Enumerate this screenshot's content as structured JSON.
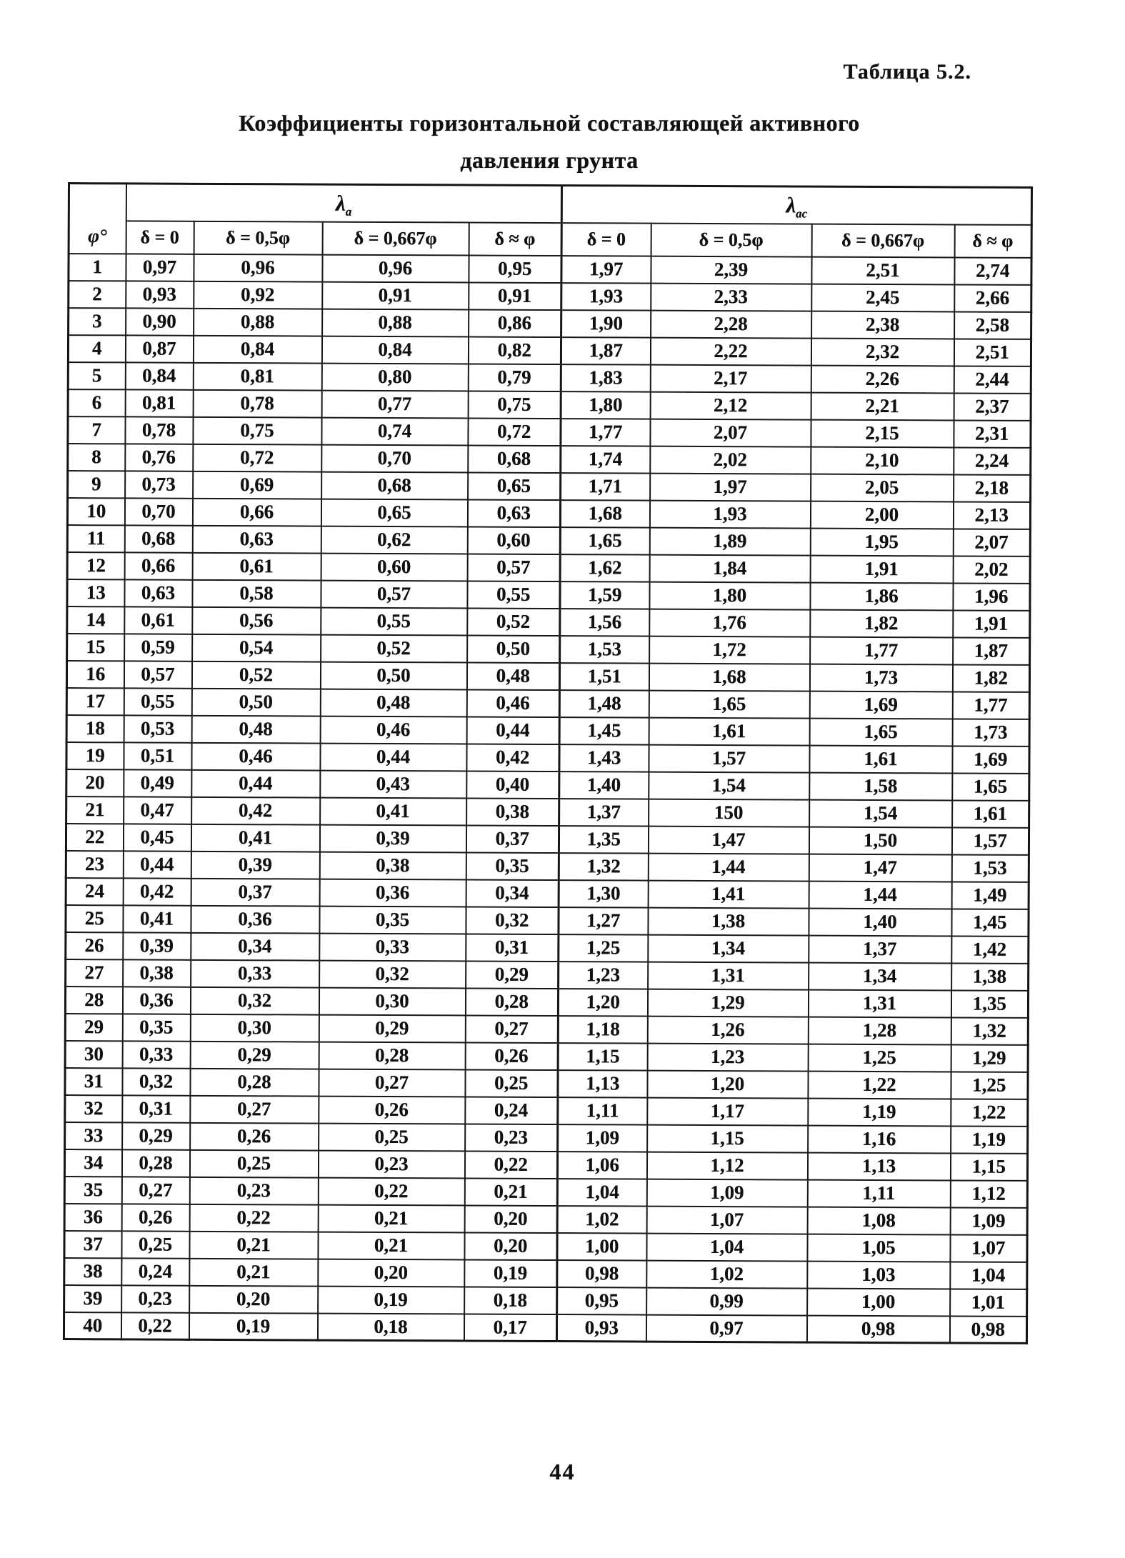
{
  "page": {
    "caption": "Таблица 5.2.",
    "title_line1": "Коэффициенты горизонтальной составляющей активного",
    "title_line2": "давления грунта",
    "page_number": "44"
  },
  "table": {
    "corner_header": "φ°",
    "groups": [
      {
        "symbol": "λ",
        "subscript": "а"
      },
      {
        "symbol": "λ",
        "subscript": "ас"
      }
    ],
    "sub_headers": [
      "δ = 0",
      "δ = 0,5φ",
      "δ = 0,667φ",
      "δ ≈ φ",
      "δ = 0",
      "δ = 0,5φ",
      "δ = 0,667φ",
      "δ ≈ φ"
    ],
    "rows": [
      [
        "1",
        "0,97",
        "0,96",
        "0,96",
        "0,95",
        "1,97",
        "2,39",
        "2,51",
        "2,74"
      ],
      [
        "2",
        "0,93",
        "0,92",
        "0,91",
        "0,91",
        "1,93",
        "2,33",
        "2,45",
        "2,66"
      ],
      [
        "3",
        "0,90",
        "0,88",
        "0,88",
        "0,86",
        "1,90",
        "2,28",
        "2,38",
        "2,58"
      ],
      [
        "4",
        "0,87",
        "0,84",
        "0,84",
        "0,82",
        "1,87",
        "2,22",
        "2,32",
        "2,51"
      ],
      [
        "5",
        "0,84",
        "0,81",
        "0,80",
        "0,79",
        "1,83",
        "2,17",
        "2,26",
        "2,44"
      ],
      [
        "6",
        "0,81",
        "0,78",
        "0,77",
        "0,75",
        "1,80",
        "2,12",
        "2,21",
        "2,37"
      ],
      [
        "7",
        "0,78",
        "0,75",
        "0,74",
        "0,72",
        "1,77",
        "2,07",
        "2,15",
        "2,31"
      ],
      [
        "8",
        "0,76",
        "0,72",
        "0,70",
        "0,68",
        "1,74",
        "2,02",
        "2,10",
        "2,24"
      ],
      [
        "9",
        "0,73",
        "0,69",
        "0,68",
        "0,65",
        "1,71",
        "1,97",
        "2,05",
        "2,18"
      ],
      [
        "10",
        "0,70",
        "0,66",
        "0,65",
        "0,63",
        "1,68",
        "1,93",
        "2,00",
        "2,13"
      ],
      [
        "11",
        "0,68",
        "0,63",
        "0,62",
        "0,60",
        "1,65",
        "1,89",
        "1,95",
        "2,07"
      ],
      [
        "12",
        "0,66",
        "0,61",
        "0,60",
        "0,57",
        "1,62",
        "1,84",
        "1,91",
        "2,02"
      ],
      [
        "13",
        "0,63",
        "0,58",
        "0,57",
        "0,55",
        "1,59",
        "1,80",
        "1,86",
        "1,96"
      ],
      [
        "14",
        "0,61",
        "0,56",
        "0,55",
        "0,52",
        "1,56",
        "1,76",
        "1,82",
        "1,91"
      ],
      [
        "15",
        "0,59",
        "0,54",
        "0,52",
        "0,50",
        "1,53",
        "1,72",
        "1,77",
        "1,87"
      ],
      [
        "16",
        "0,57",
        "0,52",
        "0,50",
        "0,48",
        "1,51",
        "1,68",
        "1,73",
        "1,82"
      ],
      [
        "17",
        "0,55",
        "0,50",
        "0,48",
        "0,46",
        "1,48",
        "1,65",
        "1,69",
        "1,77"
      ],
      [
        "18",
        "0,53",
        "0,48",
        "0,46",
        "0,44",
        "1,45",
        "1,61",
        "1,65",
        "1,73"
      ],
      [
        "19",
        "0,51",
        "0,46",
        "0,44",
        "0,42",
        "1,43",
        "1,57",
        "1,61",
        "1,69"
      ],
      [
        "20",
        "0,49",
        "0,44",
        "0,43",
        "0,40",
        "1,40",
        "1,54",
        "1,58",
        "1,65"
      ],
      [
        "21",
        "0,47",
        "0,42",
        "0,41",
        "0,38",
        "1,37",
        "150",
        "1,54",
        "1,61"
      ],
      [
        "22",
        "0,45",
        "0,41",
        "0,39",
        "0,37",
        "1,35",
        "1,47",
        "1,50",
        "1,57"
      ],
      [
        "23",
        "0,44",
        "0,39",
        "0,38",
        "0,35",
        "1,32",
        "1,44",
        "1,47",
        "1,53"
      ],
      [
        "24",
        "0,42",
        "0,37",
        "0,36",
        "0,34",
        "1,30",
        "1,41",
        "1,44",
        "1,49"
      ],
      [
        "25",
        "0,41",
        "0,36",
        "0,35",
        "0,32",
        "1,27",
        "1,38",
        "1,40",
        "1,45"
      ],
      [
        "26",
        "0,39",
        "0,34",
        "0,33",
        "0,31",
        "1,25",
        "1,34",
        "1,37",
        "1,42"
      ],
      [
        "27",
        "0,38",
        "0,33",
        "0,32",
        "0,29",
        "1,23",
        "1,31",
        "1,34",
        "1,38"
      ],
      [
        "28",
        "0,36",
        "0,32",
        "0,30",
        "0,28",
        "1,20",
        "1,29",
        "1,31",
        "1,35"
      ],
      [
        "29",
        "0,35",
        "0,30",
        "0,29",
        "0,27",
        "1,18",
        "1,26",
        "1,28",
        "1,32"
      ],
      [
        "30",
        "0,33",
        "0,29",
        "0,28",
        "0,26",
        "1,15",
        "1,23",
        "1,25",
        "1,29"
      ],
      [
        "31",
        "0,32",
        "0,28",
        "0,27",
        "0,25",
        "1,13",
        "1,20",
        "1,22",
        "1,25"
      ],
      [
        "32",
        "0,31",
        "0,27",
        "0,26",
        "0,24",
        "1,11",
        "1,17",
        "1,19",
        "1,22"
      ],
      [
        "33",
        "0,29",
        "0,26",
        "0,25",
        "0,23",
        "1,09",
        "1,15",
        "1,16",
        "1,19"
      ],
      [
        "34",
        "0,28",
        "0,25",
        "0,23",
        "0,22",
        "1,06",
        "1,12",
        "1,13",
        "1,15"
      ],
      [
        "35",
        "0,27",
        "0,23",
        "0,22",
        "0,21",
        "1,04",
        "1,09",
        "1,11",
        "1,12"
      ],
      [
        "36",
        "0,26",
        "0,22",
        "0,21",
        "0,20",
        "1,02",
        "1,07",
        "1,08",
        "1,09"
      ],
      [
        "37",
        "0,25",
        "0,21",
        "0,21",
        "0,20",
        "1,00",
        "1,04",
        "1,05",
        "1,07"
      ],
      [
        "38",
        "0,24",
        "0,21",
        "0,20",
        "0,19",
        "0,98",
        "1,02",
        "1,03",
        "1,04"
      ],
      [
        "39",
        "0,23",
        "0,20",
        "0,19",
        "0,18",
        "0,95",
        "0,99",
        "1,00",
        "1,01"
      ],
      [
        "40",
        "0,22",
        "0,19",
        "0,18",
        "0,17",
        "0,93",
        "0,97",
        "0,98",
        "0,98"
      ]
    ]
  }
}
